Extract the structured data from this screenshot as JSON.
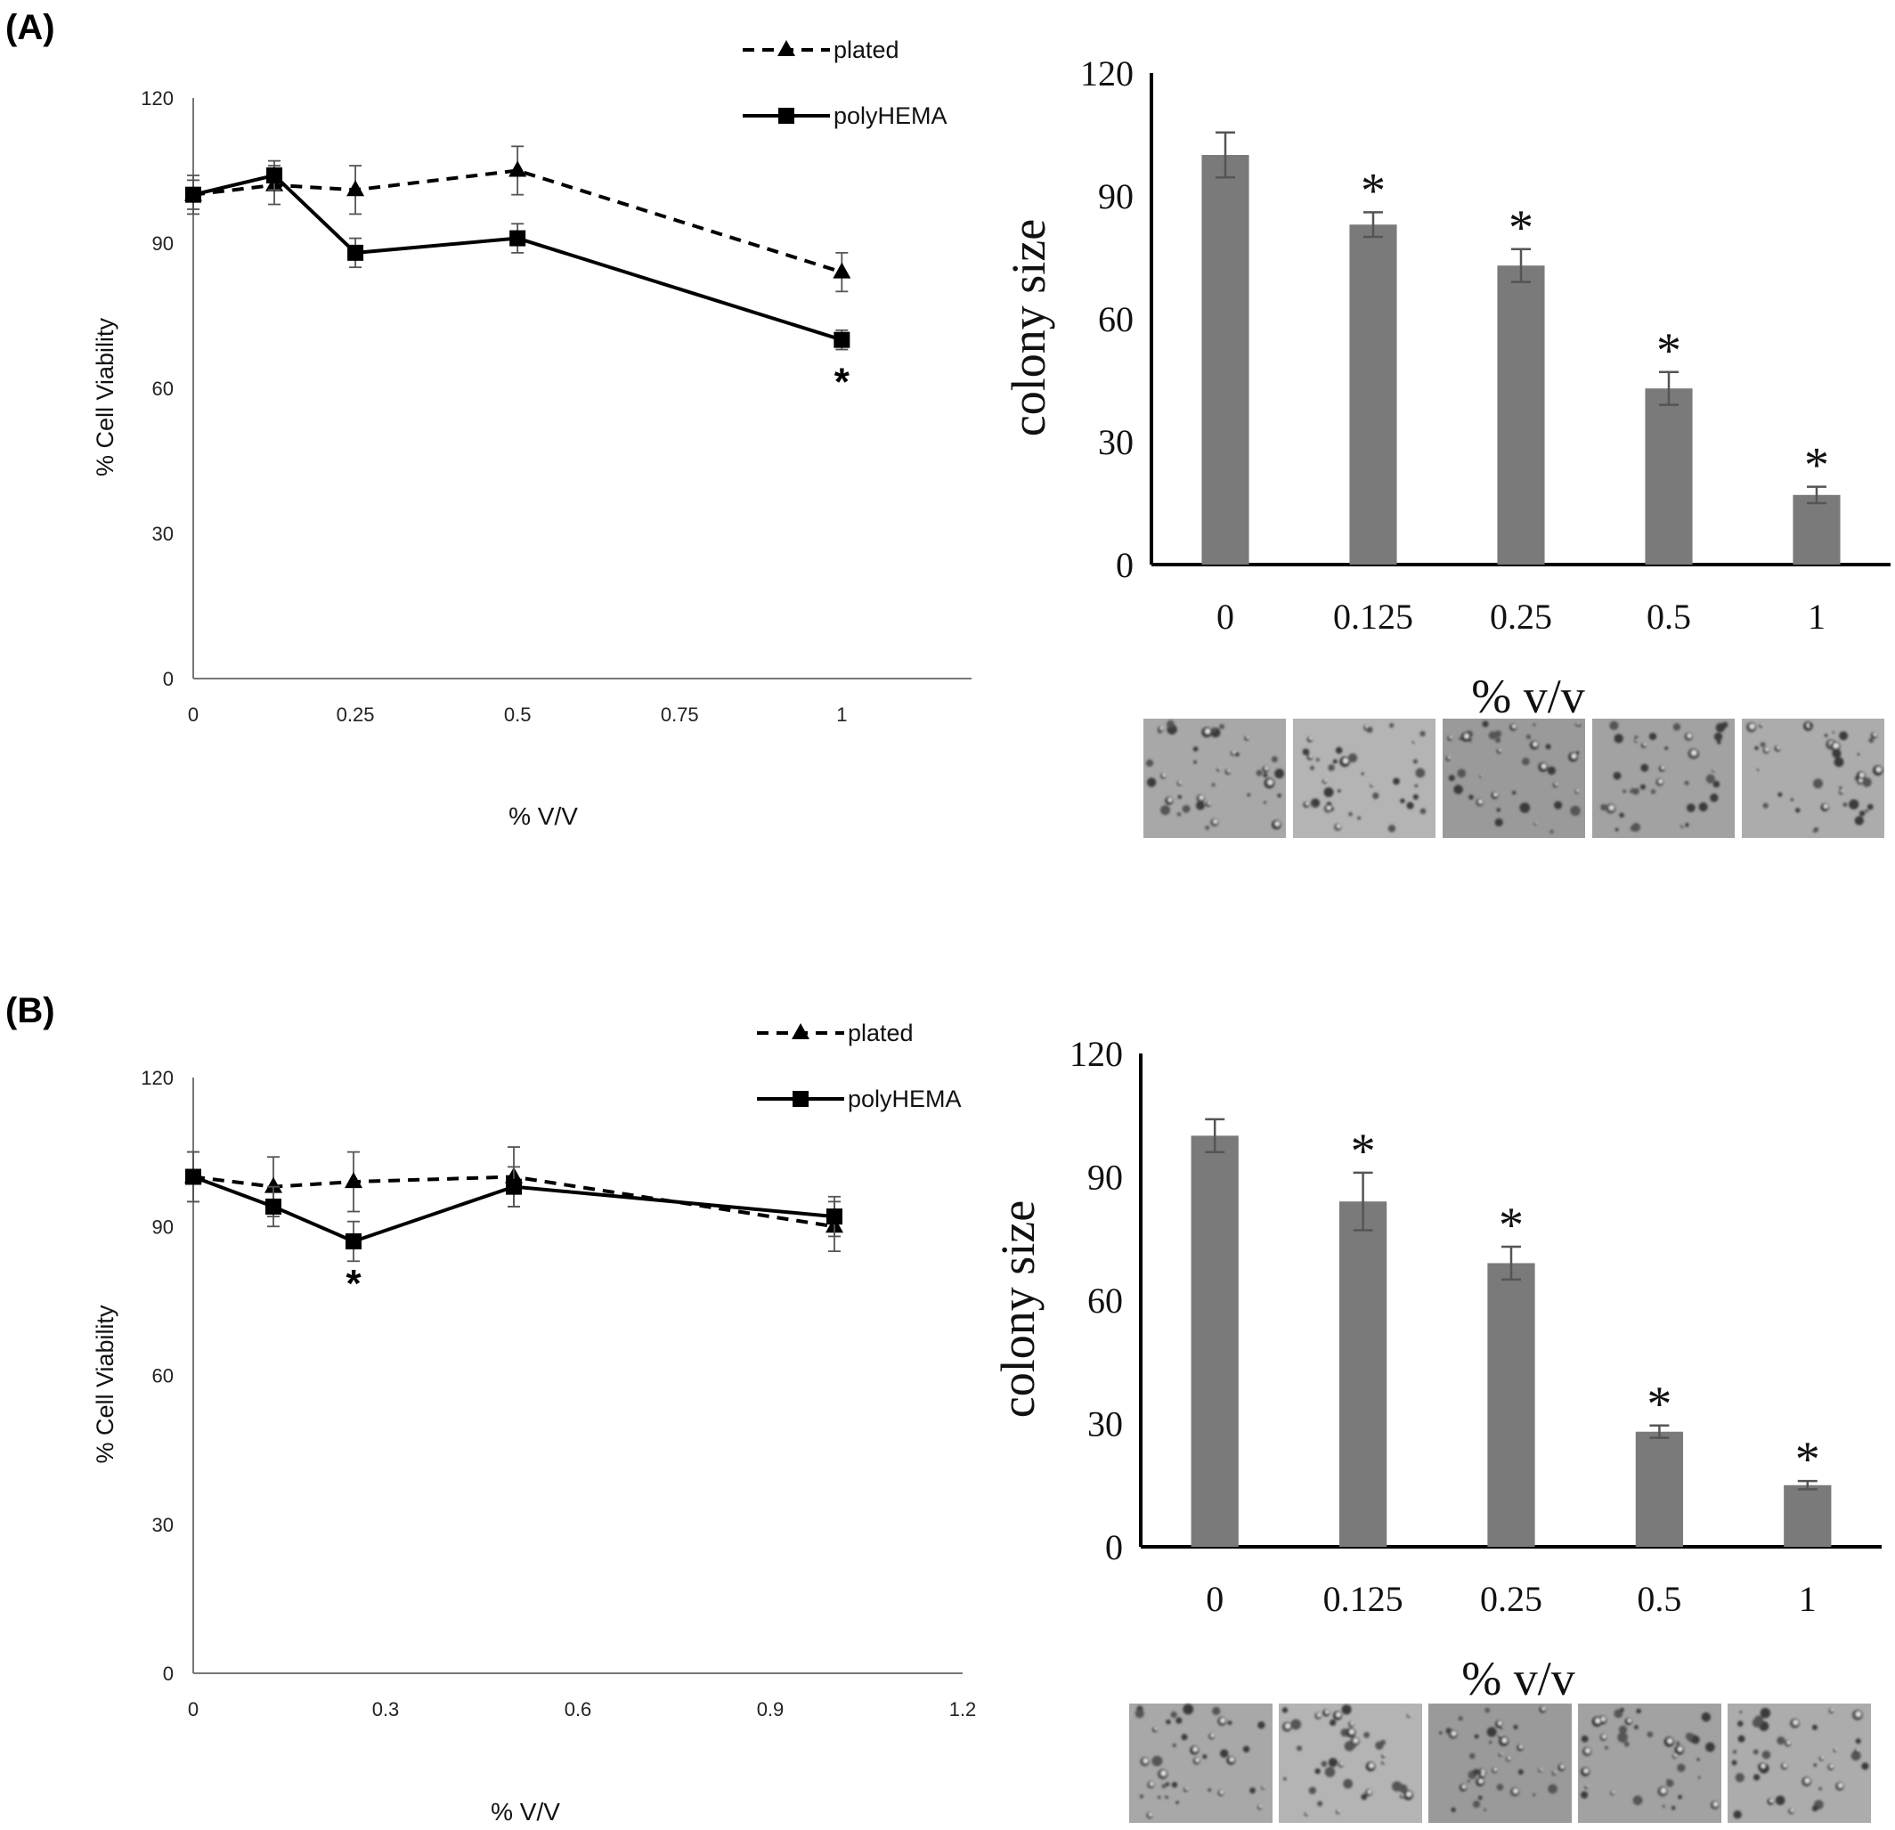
{
  "panels": [
    {
      "label": "(A)",
      "line_chart": {
        "type": "line",
        "ylabel": "% Cell Viability",
        "xlabel": "% V/V",
        "ylim": [
          0,
          120
        ],
        "yticks": [
          0,
          30,
          60,
          90,
          120
        ],
        "xlim": [
          0,
          1.2
        ],
        "xticks": [
          0,
          0.25,
          0.5,
          0.75,
          1
        ],
        "xtick_labels": [
          "0",
          "0.25",
          "0.5",
          "0.75",
          "1"
        ],
        "legend": [
          "plated",
          "polyHEMA"
        ],
        "series": [
          {
            "name": "plated",
            "style": "dashed",
            "marker": "triangle",
            "x": [
              0,
              0.125,
              0.25,
              0.5,
              1
            ],
            "y": [
              100,
              102,
              101,
              105,
              84
            ],
            "err": [
              4,
              4,
              5,
              5,
              4
            ]
          },
          {
            "name": "polyHEMA",
            "style": "solid",
            "marker": "square",
            "x": [
              0,
              0.125,
              0.25,
              0.5,
              1
            ],
            "y": [
              100,
              104,
              88,
              91,
              70
            ],
            "err": [
              3,
              3,
              3,
              3,
              2
            ]
          }
        ],
        "annotations": [
          {
            "x": 1,
            "y": 70,
            "text": "*"
          }
        ]
      },
      "bar_chart": {
        "type": "bar",
        "ylabel": "colony size",
        "xlabel": "% v/v",
        "ylim": [
          0,
          120
        ],
        "yticks": [
          0,
          30,
          60,
          90,
          120
        ],
        "categories": [
          "0",
          "0.125",
          "0.25",
          "0.5",
          "1"
        ],
        "values": [
          100,
          83,
          73,
          43,
          17
        ],
        "errors": [
          5.5,
          3,
          4,
          4,
          2
        ],
        "significance": [
          "",
          "*",
          "*",
          "*",
          "*"
        ],
        "images": 5
      }
    },
    {
      "label": "(B)",
      "line_chart": {
        "type": "line",
        "ylabel": "% Cell Viability",
        "xlabel": "% V/V",
        "ylim": [
          0,
          120
        ],
        "yticks": [
          0,
          30,
          60,
          90,
          120
        ],
        "xlim": [
          0,
          1.2
        ],
        "xticks": [
          0,
          0.3,
          0.6,
          0.9,
          1.2
        ],
        "xtick_labels": [
          "0",
          "0.3",
          "0.6",
          "0.9",
          "1.2"
        ],
        "legend": [
          "plated",
          "polyHEMA"
        ],
        "series": [
          {
            "name": "plated",
            "style": "dashed",
            "marker": "triangle",
            "x": [
              0,
              0.125,
              0.25,
              0.5,
              1
            ],
            "y": [
              100,
              98,
              99,
              100,
              90
            ],
            "err": [
              5,
              6,
              6,
              6,
              5
            ]
          },
          {
            "name": "polyHEMA",
            "style": "solid",
            "marker": "square",
            "x": [
              0,
              0.125,
              0.25,
              0.5,
              1
            ],
            "y": [
              100,
              94,
              87,
              98,
              92
            ],
            "err": [
              5,
              4,
              4,
              4,
              4
            ]
          }
        ],
        "annotations": [
          {
            "x": 0.25,
            "y": 87,
            "text": "*"
          }
        ]
      },
      "bar_chart": {
        "type": "bar",
        "ylabel": "colony size",
        "xlabel": "% v/v",
        "ylim": [
          0,
          120
        ],
        "yticks": [
          0,
          30,
          60,
          90,
          120
        ],
        "categories": [
          "0",
          "0.125",
          "0.25",
          "0.5",
          "1"
        ],
        "values": [
          100,
          84,
          69,
          28,
          15
        ],
        "errors": [
          4,
          7,
          4,
          1.5,
          1
        ],
        "significance": [
          "",
          "*",
          "*",
          "*",
          "*"
        ],
        "images": 5
      }
    }
  ],
  "colors": {
    "bar": "#7a7a7a",
    "bar_error": "#555555",
    "line": "#000000",
    "axis_line_chart": "#777777",
    "axis_bar_chart": "#000000",
    "micrograph_bg": "#a9a9a9"
  }
}
